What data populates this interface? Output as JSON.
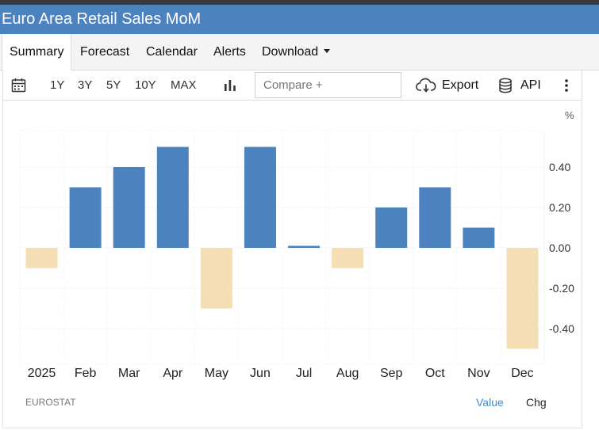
{
  "app": {
    "title": "Euro Area Retail Sales MoM"
  },
  "nav": {
    "tabs": [
      "Summary",
      "Forecast",
      "Calendar",
      "Alerts",
      "Download"
    ],
    "active": "Summary"
  },
  "toolbar": {
    "ranges": [
      "1Y",
      "3Y",
      "5Y",
      "10Y",
      "MAX"
    ],
    "compare_placeholder": "Compare +",
    "export_label": "Export",
    "api_label": "API",
    "icons": [
      "calendar-icon",
      "bar-chart-icon",
      "cloud-download-icon",
      "database-icon",
      "more-vertical-icon"
    ]
  },
  "footer": {
    "source": "EUROSTAT",
    "value_label": "Value",
    "chg_label": "Chg"
  },
  "colors": {
    "positive": "#4d82c0",
    "negative": "#f5deb3",
    "accent": "#4d82c0",
    "link": "#3a8ed8"
  },
  "chart_data": {
    "type": "bar",
    "unit": "%",
    "categories": [
      "2025",
      "Feb",
      "Mar",
      "Apr",
      "May",
      "Jun",
      "Jul",
      "Aug",
      "Sep",
      "Oct",
      "Nov",
      "Dec"
    ],
    "values": [
      -0.1,
      0.3,
      0.4,
      0.5,
      -0.3,
      0.5,
      0.01,
      -0.1,
      0.2,
      0.3,
      0.1,
      -0.5
    ],
    "ylim": [
      -0.58,
      0.58
    ],
    "yticks": [
      0.4,
      0.2,
      0.0,
      -0.2,
      -0.4
    ],
    "ytick_labels": [
      "0.40",
      "0.20",
      "0.00",
      "-0.20",
      "-0.40"
    ],
    "grid": true,
    "legend": "none"
  }
}
